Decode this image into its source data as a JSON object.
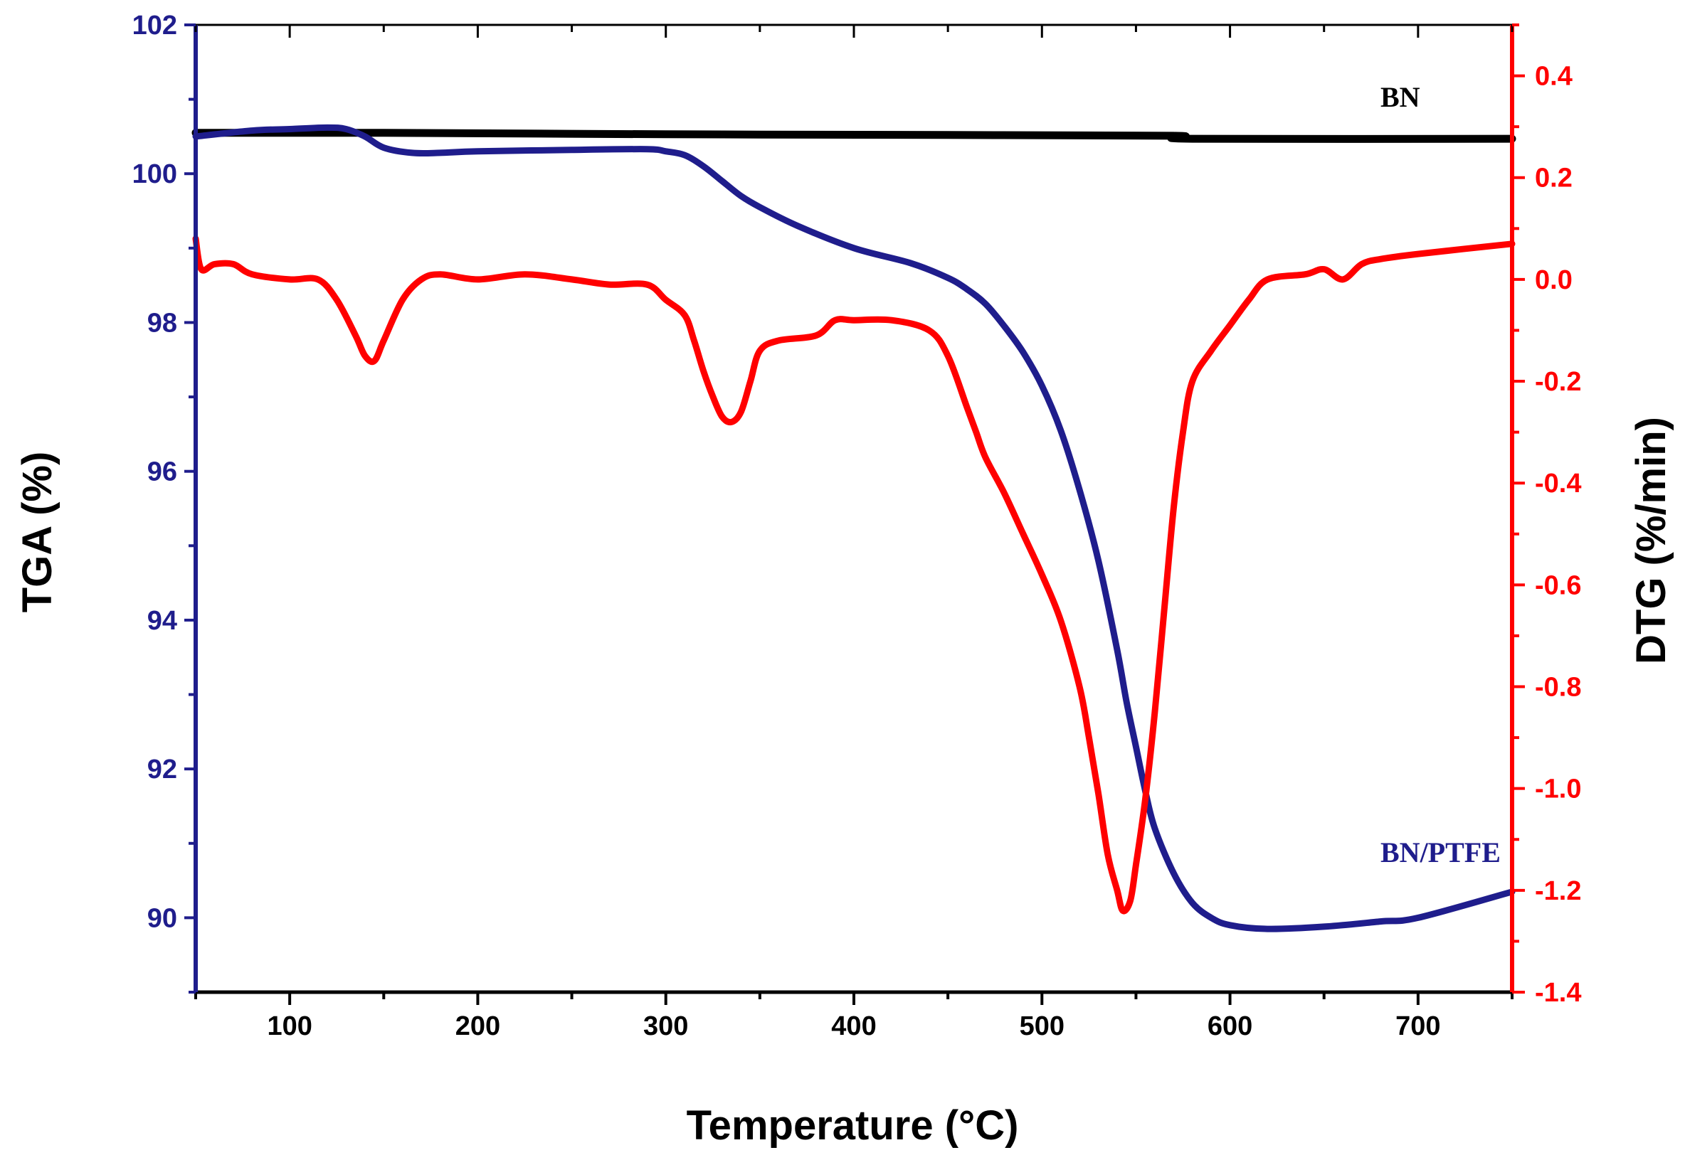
{
  "chart_data": {
    "type": "line",
    "title": "",
    "xlabel": "Temperature (°C)",
    "ylabel_left": "TGA (%)",
    "ylabel_right": "DTG (%/min)",
    "xlim": [
      50,
      750
    ],
    "ylim_left": [
      89,
      102
    ],
    "ylim_right": [
      -1.4,
      0.5
    ],
    "x_ticks": [
      100,
      200,
      300,
      400,
      500,
      600,
      700
    ],
    "y_ticks_left": [
      90,
      92,
      94,
      96,
      98,
      100,
      102
    ],
    "y_ticks_right": [
      -1.4,
      -1.2,
      -1.0,
      -0.8,
      -0.6,
      -0.4,
      -0.2,
      0.0,
      0.2,
      0.4
    ],
    "y_tick_labels_right": [
      "-1.4",
      "-1.2",
      "-1.0",
      "-0.8",
      "-0.6",
      "-0.4",
      "-0.2",
      "0.0",
      "0.2",
      "0.4"
    ],
    "grid": false,
    "colors": {
      "left_axis": "#1f1d8c",
      "right_axis": "#ff0000",
      "frame": "#000000"
    },
    "series": [
      {
        "name": "BN",
        "axis": "left",
        "color": "#000000",
        "x": [
          50,
          150,
          300,
          450,
          570,
          580,
          750
        ],
        "y": [
          100.55,
          100.55,
          100.53,
          100.52,
          100.51,
          100.47,
          100.47
        ]
      },
      {
        "name": "BN/PTFE",
        "axis": "left",
        "color": "#1f1d8c",
        "x": [
          50,
          80,
          100,
          120,
          130,
          140,
          150,
          165,
          180,
          200,
          250,
          290,
          300,
          310,
          320,
          330,
          340,
          350,
          370,
          400,
          430,
          450,
          460,
          470,
          480,
          490,
          500,
          510,
          520,
          530,
          540,
          545,
          550,
          555,
          560,
          570,
          580,
          590,
          600,
          620,
          650,
          680,
          700,
          750
        ],
        "y": [
          100.5,
          100.58,
          100.6,
          100.62,
          100.6,
          100.5,
          100.35,
          100.28,
          100.28,
          100.3,
          100.32,
          100.33,
          100.3,
          100.25,
          100.1,
          99.9,
          99.7,
          99.55,
          99.3,
          99.0,
          98.8,
          98.6,
          98.45,
          98.25,
          97.95,
          97.6,
          97.15,
          96.55,
          95.75,
          94.8,
          93.6,
          92.9,
          92.3,
          91.7,
          91.2,
          90.6,
          90.2,
          90.0,
          89.9,
          89.85,
          89.88,
          89.95,
          90.0,
          90.35
        ]
      },
      {
        "name": "DTG",
        "axis": "right",
        "color": "#ff0000",
        "x": [
          50,
          53,
          60,
          70,
          80,
          100,
          115,
          125,
          135,
          140,
          145,
          150,
          160,
          170,
          180,
          200,
          225,
          250,
          270,
          290,
          300,
          310,
          315,
          320,
          325,
          330,
          335,
          340,
          345,
          350,
          360,
          380,
          390,
          400,
          420,
          440,
          450,
          460,
          465,
          470,
          480,
          490,
          500,
          510,
          520,
          525,
          530,
          535,
          540,
          543,
          547,
          550,
          555,
          560,
          565,
          570,
          575,
          580,
          590,
          600,
          610,
          620,
          640,
          650,
          660,
          670,
          680,
          700,
          750
        ],
        "y": [
          0.08,
          0.02,
          0.03,
          0.03,
          0.01,
          0.0,
          0.0,
          -0.04,
          -0.11,
          -0.15,
          -0.16,
          -0.12,
          -0.04,
          0.0,
          0.01,
          0.0,
          0.01,
          0.0,
          -0.01,
          -0.01,
          -0.04,
          -0.07,
          -0.12,
          -0.18,
          -0.23,
          -0.27,
          -0.28,
          -0.26,
          -0.2,
          -0.14,
          -0.12,
          -0.11,
          -0.08,
          -0.08,
          -0.08,
          -0.1,
          -0.15,
          -0.25,
          -0.3,
          -0.35,
          -0.42,
          -0.5,
          -0.58,
          -0.67,
          -0.8,
          -0.9,
          -1.01,
          -1.13,
          -1.2,
          -1.24,
          -1.22,
          -1.15,
          -1.02,
          -0.85,
          -0.65,
          -0.45,
          -0.3,
          -0.2,
          -0.14,
          -0.09,
          -0.04,
          0.0,
          0.01,
          0.02,
          0.0,
          0.03,
          0.04,
          0.05,
          0.07
        ]
      }
    ],
    "annotations": [
      {
        "text": "BN",
        "x": 680,
        "y_left": 100.9,
        "color": "#000000"
      },
      {
        "text": "BN/PTFE",
        "x": 680,
        "y_left": 90.75,
        "color": "#1f1d8c"
      }
    ]
  }
}
